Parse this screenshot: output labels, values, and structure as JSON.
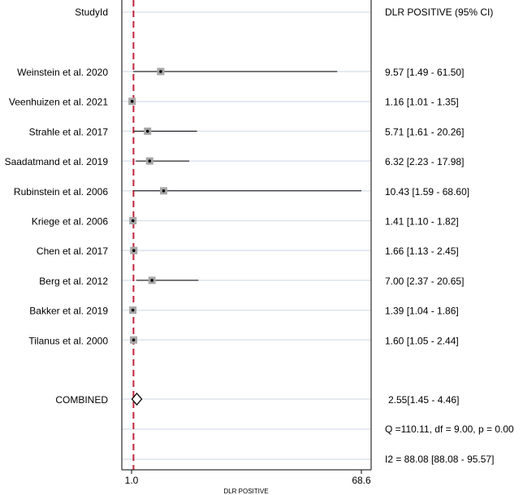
{
  "chart_data": {
    "type": "forest",
    "headers": {
      "left": "StudyId",
      "right": "DLR POSITIVE (95% CI)"
    },
    "xlabel": "DLR POSITIVE",
    "xlim": [
      1.0,
      68.6
    ],
    "x_ticks": [
      "1.0",
      "68.6"
    ],
    "reference_line": 1.57,
    "grid": true,
    "studies": [
      {
        "label": "Weinstein et al. 2020",
        "estimate": 9.57,
        "ci": [
          1.49,
          61.5
        ],
        "text": "9.57 [1.49 - 61.50]",
        "weight": 1.0
      },
      {
        "label": "Veenhuizen et al. 2021",
        "estimate": 1.16,
        "ci": [
          1.01,
          1.35
        ],
        "text": "1.16 [1.01 - 1.35]",
        "weight": 1.0
      },
      {
        "label": "Strahle et al. 2017",
        "estimate": 5.71,
        "ci": [
          1.61,
          20.26
        ],
        "text": "5.71 [1.61 - 20.26]",
        "weight": 1.0
      },
      {
        "label": "Saadatmand et al. 2019",
        "estimate": 6.32,
        "ci": [
          2.23,
          17.98
        ],
        "text": "6.32 [2.23 - 17.98]",
        "weight": 1.0
      },
      {
        "label": "Rubinstein et al. 2006",
        "estimate": 10.43,
        "ci": [
          1.59,
          68.6
        ],
        "text": "10.43 [1.59 - 68.60]",
        "weight": 1.0
      },
      {
        "label": "Kriege et al. 2006",
        "estimate": 1.41,
        "ci": [
          1.1,
          1.82
        ],
        "text": "1.41 [1.10 - 1.82]",
        "weight": 1.0
      },
      {
        "label": "Chen et al. 2017",
        "estimate": 1.66,
        "ci": [
          1.13,
          2.45
        ],
        "text": "1.66 [1.13 - 2.45]",
        "weight": 1.0
      },
      {
        "label": "Berg et al. 2012",
        "estimate": 7.0,
        "ci": [
          2.37,
          20.65
        ],
        "text": "7.00 [2.37 - 20.65]",
        "weight": 1.0
      },
      {
        "label": "Bakker et al. 2019",
        "estimate": 1.39,
        "ci": [
          1.04,
          1.86
        ],
        "text": "1.39 [1.04 - 1.86]",
        "weight": 1.0
      },
      {
        "label": "Tilanus et al. 2000",
        "estimate": 1.6,
        "ci": [
          1.05,
          2.44
        ],
        "text": "1.60 [1.05 - 2.44]",
        "weight": 1.0
      }
    ],
    "combined": {
      "label": "COMBINED",
      "estimate": 2.55,
      "ci": [
        1.45,
        4.46
      ],
      "text": "2.55[1.45 - 4.46]"
    },
    "stats": [
      "Q =110.11, df = 9.00, p =  0.00",
      "I2 = 88.08 [88.08 - 95.57]"
    ],
    "colors": {
      "reference_line": "#c0233a",
      "box_fill": "#a6a6a6",
      "grid": "#dde3ee",
      "ci_line": "#000000"
    }
  }
}
